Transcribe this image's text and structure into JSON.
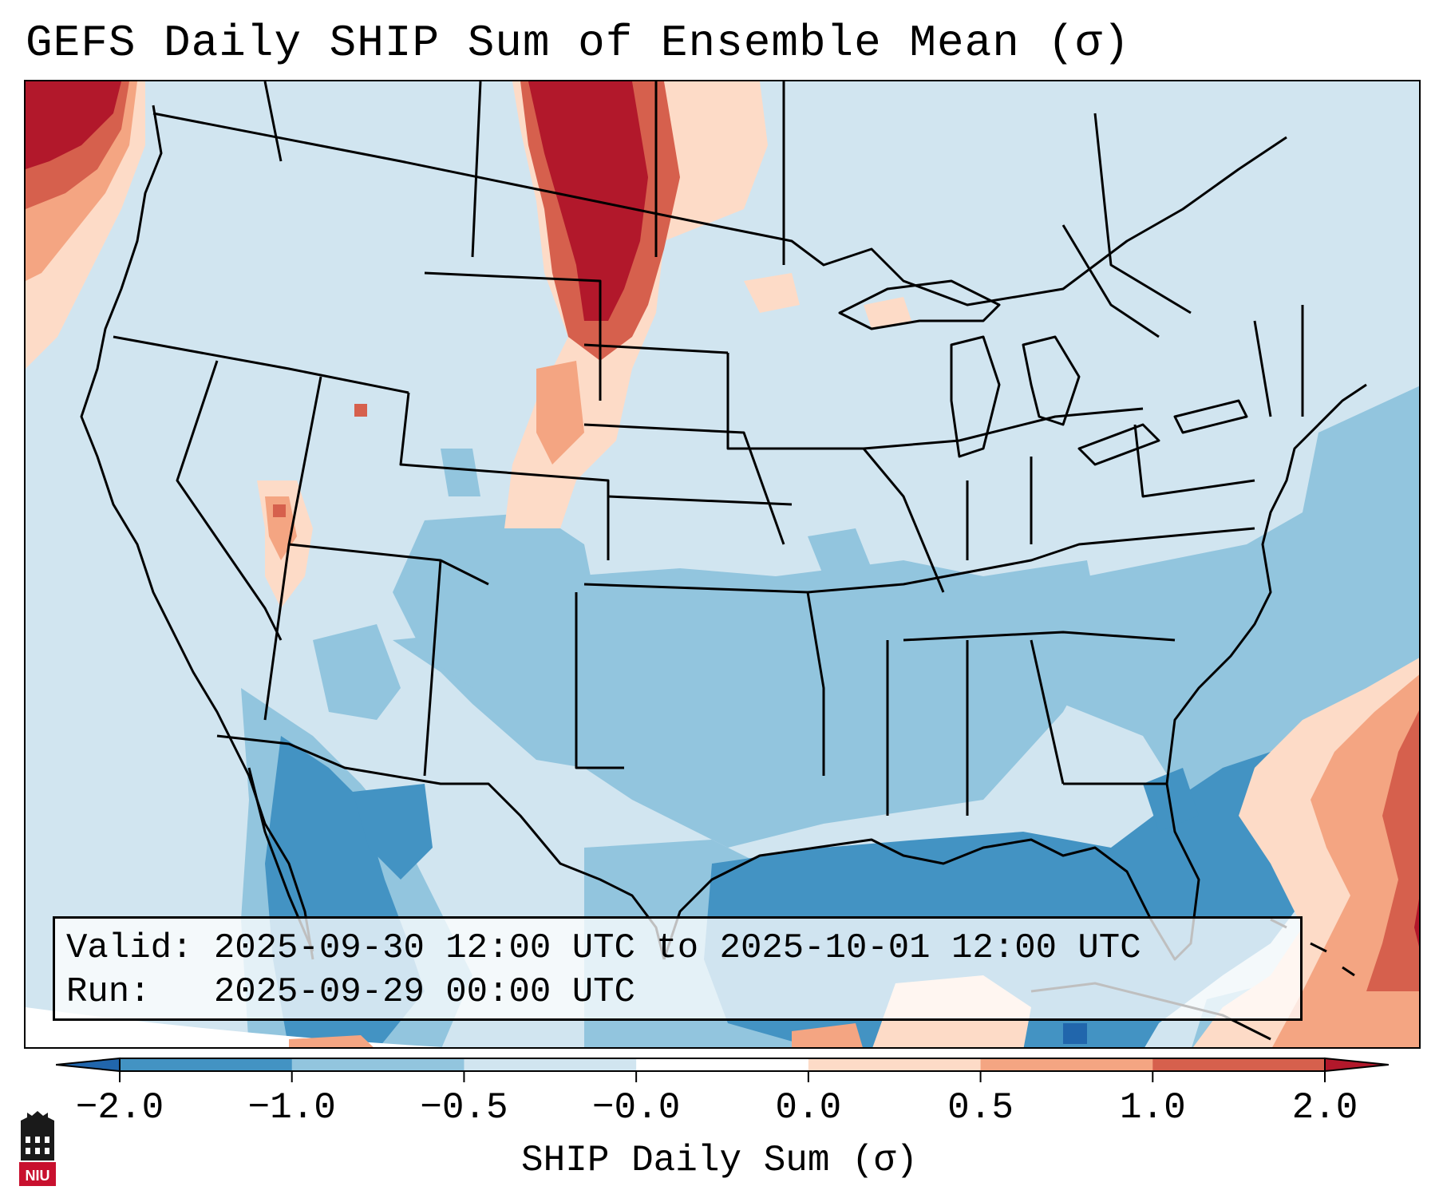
{
  "title": "GEFS Daily SHIP Sum of Ensemble Mean (σ)",
  "info": {
    "valid_line": "Valid: 2025-09-30 12:00 UTC to 2025-10-01 12:00 UTC",
    "run_line": "Run:   2025-09-29 00:00 UTC"
  },
  "colorbar": {
    "label": "SHIP Daily Sum (σ)",
    "ticks": [
      "−2.0",
      "−1.0",
      "−0.5",
      "−0.0",
      "0.0",
      "0.5",
      "1.0",
      "2.0"
    ],
    "colors": [
      "#2166ac",
      "#4393c3",
      "#92c5de",
      "#d1e5f0",
      "#ffffff",
      "#fddbc7",
      "#f4a582",
      "#d6604d",
      "#b2182b"
    ]
  },
  "logo": {
    "text": "NIU",
    "icon": "niu-logo-icon"
  }
}
